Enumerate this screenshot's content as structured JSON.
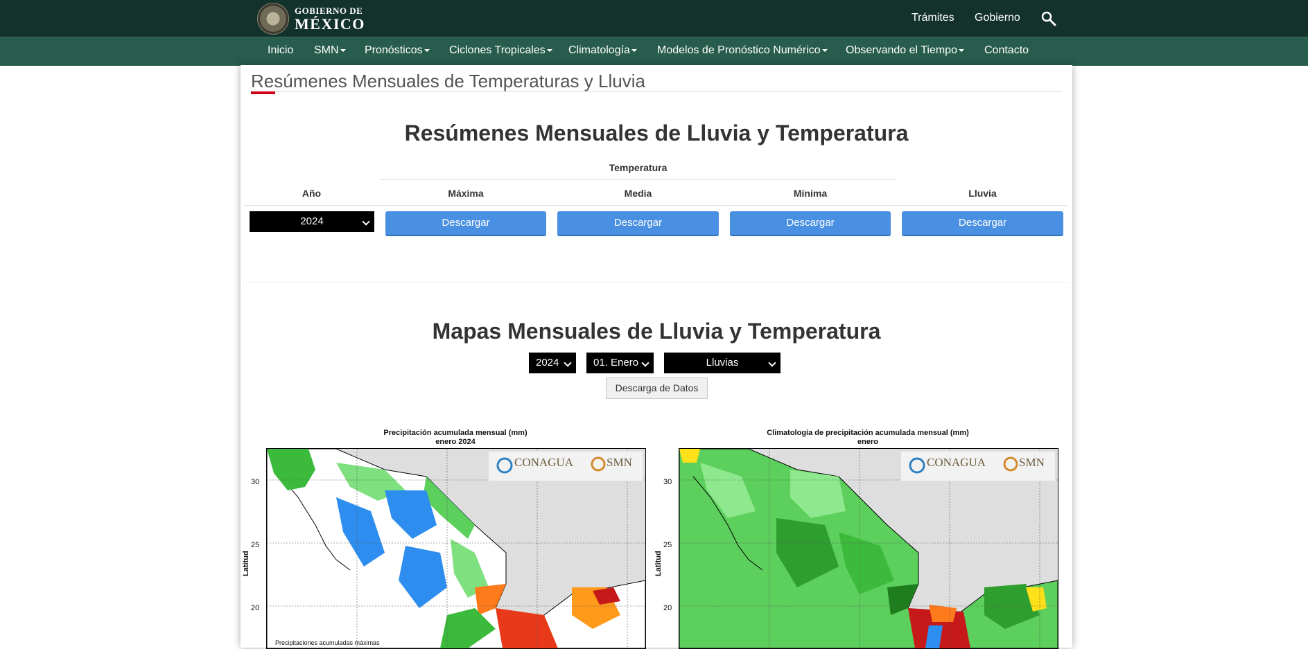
{
  "header": {
    "logo_line1": "GOBIERNO DE",
    "logo_line2": "MÉXICO",
    "links": [
      "Trámites",
      "Gobierno"
    ],
    "search_icon": "search-icon"
  },
  "nav": {
    "items": [
      {
        "label": "Inicio",
        "dropdown": false
      },
      {
        "label": "SMN",
        "dropdown": true
      },
      {
        "label": "Pronósticos",
        "dropdown": true
      },
      {
        "label": "Ciclones Tropicales",
        "dropdown": true
      },
      {
        "label": "Climatología",
        "dropdown": true
      },
      {
        "label": "Modelos de Pronóstico Numérico",
        "dropdown": true
      },
      {
        "label": "Observando el Tiempo",
        "dropdown": true
      },
      {
        "label": "Contacto",
        "dropdown": false
      }
    ]
  },
  "page": {
    "title": "Resúmenes Mensuales de Temperaturas y Lluvia"
  },
  "resumenes": {
    "heading": "Resúmenes Mensuales de Lluvia y Temperatura",
    "temp_group": "Temperatura",
    "col_year": "Año",
    "col_max": "Máxima",
    "col_mean": "Media",
    "col_min": "Mínima",
    "col_rain": "Lluvia",
    "year_value": "2024",
    "download_label": "Descargar"
  },
  "mapas": {
    "heading": "Mapas Mensuales de Lluvia y Temperatura",
    "year_value": "2024",
    "month_value": "01. Enero",
    "variable_value": "Lluvias",
    "download_data_label": "Descarga de Datos",
    "left_map": {
      "title_line1": "Precipitación acumulada mensual (mm)",
      "title_line2": "enero 2024",
      "note": "Precipitaciones acumuladas máximas"
    },
    "right_map": {
      "title_line1": "Climatología de precipitación acumulada mensual (mm)",
      "title_line2": "enero"
    },
    "y_axis_label": "Latitud",
    "y_ticks": [
      "30",
      "25",
      "20"
    ],
    "logo_conagua": "CONAGUA",
    "logo_smn": "SMN"
  },
  "colors": {
    "header_bg": "#13322b",
    "nav_bg": "#285c4d",
    "button_blue": "#4a90e2",
    "accent_red": "#d0021b"
  }
}
